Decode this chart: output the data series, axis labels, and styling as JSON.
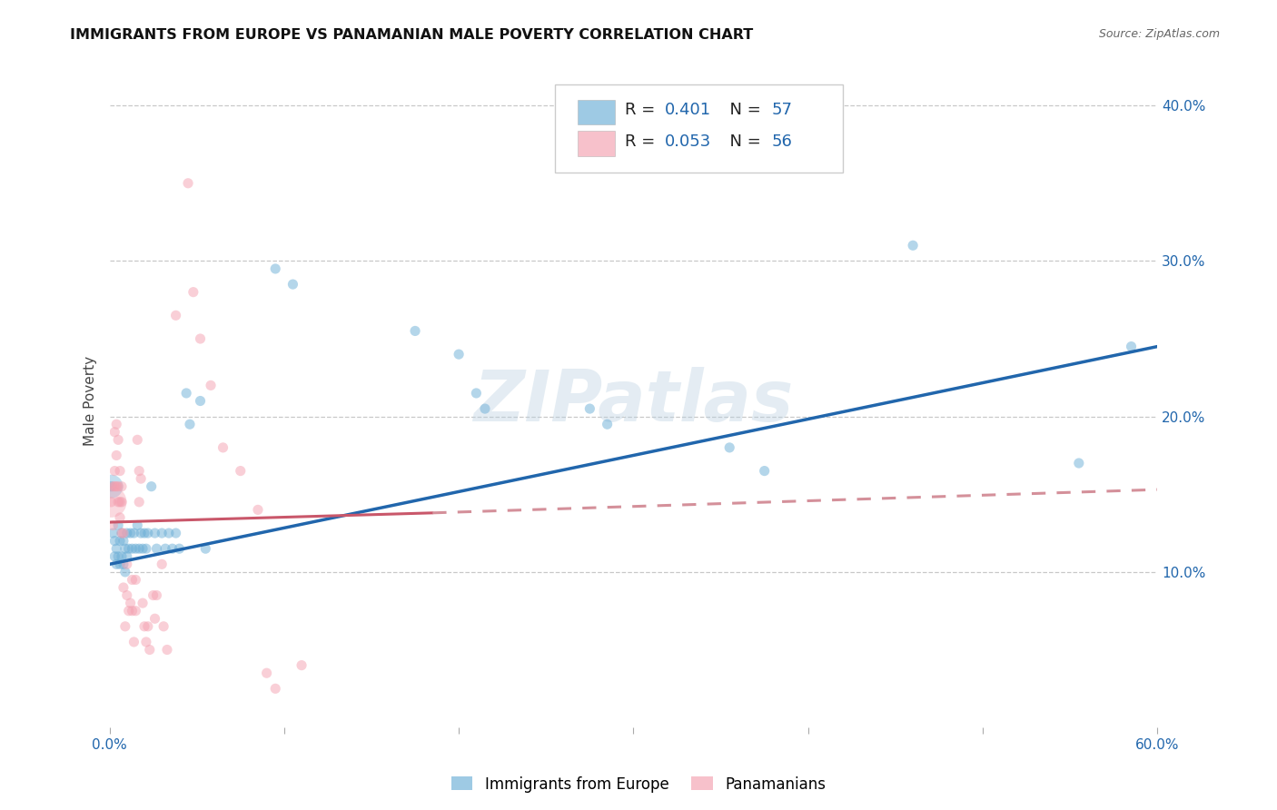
{
  "title": "IMMIGRANTS FROM EUROPE VS PANAMANIAN MALE POVERTY CORRELATION CHART",
  "source": "Source: ZipAtlas.com",
  "ylabel": "Male Poverty",
  "xlim": [
    0.0,
    0.6
  ],
  "ylim": [
    0.0,
    0.42
  ],
  "xticks": [
    0.0,
    0.1,
    0.2,
    0.3,
    0.4,
    0.5,
    0.6
  ],
  "xticklabels": [
    "0.0%",
    "",
    "",
    "",
    "",
    "",
    "60.0%"
  ],
  "yticks_right": [
    0.1,
    0.2,
    0.3,
    0.4
  ],
  "ytick_right_labels": [
    "10.0%",
    "20.0%",
    "30.0%",
    "40.0%"
  ],
  "legend_bottom": [
    "Immigrants from Europe",
    "Panamanians"
  ],
  "blue_color": "#6baed6",
  "pink_color": "#f4a0b0",
  "blue_line_color": "#2166ac",
  "pink_line_color": "#c9576a",
  "pink_line_dashed_color": "#d4909a",
  "watermark": "ZIPatlas",
  "blue_scatter": [
    [
      0.001,
      0.155
    ],
    [
      0.002,
      0.125
    ],
    [
      0.003,
      0.12
    ],
    [
      0.003,
      0.11
    ],
    [
      0.004,
      0.115
    ],
    [
      0.004,
      0.105
    ],
    [
      0.005,
      0.13
    ],
    [
      0.005,
      0.11
    ],
    [
      0.006,
      0.12
    ],
    [
      0.006,
      0.105
    ],
    [
      0.007,
      0.125
    ],
    [
      0.007,
      0.11
    ],
    [
      0.008,
      0.12
    ],
    [
      0.008,
      0.105
    ],
    [
      0.009,
      0.115
    ],
    [
      0.009,
      0.1
    ],
    [
      0.01,
      0.125
    ],
    [
      0.01,
      0.11
    ],
    [
      0.011,
      0.115
    ],
    [
      0.012,
      0.125
    ],
    [
      0.013,
      0.115
    ],
    [
      0.014,
      0.125
    ],
    [
      0.015,
      0.115
    ],
    [
      0.016,
      0.13
    ],
    [
      0.017,
      0.115
    ],
    [
      0.018,
      0.125
    ],
    [
      0.019,
      0.115
    ],
    [
      0.02,
      0.125
    ],
    [
      0.021,
      0.115
    ],
    [
      0.022,
      0.125
    ],
    [
      0.024,
      0.155
    ],
    [
      0.026,
      0.125
    ],
    [
      0.027,
      0.115
    ],
    [
      0.03,
      0.125
    ],
    [
      0.032,
      0.115
    ],
    [
      0.034,
      0.125
    ],
    [
      0.036,
      0.115
    ],
    [
      0.038,
      0.125
    ],
    [
      0.04,
      0.115
    ],
    [
      0.044,
      0.215
    ],
    [
      0.046,
      0.195
    ],
    [
      0.052,
      0.21
    ],
    [
      0.055,
      0.115
    ],
    [
      0.095,
      0.295
    ],
    [
      0.105,
      0.285
    ],
    [
      0.175,
      0.255
    ],
    [
      0.2,
      0.24
    ],
    [
      0.21,
      0.215
    ],
    [
      0.215,
      0.205
    ],
    [
      0.275,
      0.205
    ],
    [
      0.285,
      0.195
    ],
    [
      0.355,
      0.18
    ],
    [
      0.375,
      0.165
    ],
    [
      0.46,
      0.31
    ],
    [
      0.555,
      0.17
    ],
    [
      0.585,
      0.245
    ]
  ],
  "blue_scatter_large": [
    [
      0.001,
      0.155,
      350
    ]
  ],
  "pink_scatter": [
    [
      0.001,
      0.145
    ],
    [
      0.002,
      0.155
    ],
    [
      0.002,
      0.13
    ],
    [
      0.003,
      0.19
    ],
    [
      0.003,
      0.165
    ],
    [
      0.003,
      0.155
    ],
    [
      0.004,
      0.175
    ],
    [
      0.004,
      0.155
    ],
    [
      0.004,
      0.195
    ],
    [
      0.005,
      0.185
    ],
    [
      0.005,
      0.155
    ],
    [
      0.005,
      0.145
    ],
    [
      0.006,
      0.135
    ],
    [
      0.006,
      0.165
    ],
    [
      0.006,
      0.145
    ],
    [
      0.007,
      0.125
    ],
    [
      0.007,
      0.155
    ],
    [
      0.007,
      0.145
    ],
    [
      0.008,
      0.125
    ],
    [
      0.008,
      0.09
    ],
    [
      0.009,
      0.065
    ],
    [
      0.01,
      0.105
    ],
    [
      0.01,
      0.085
    ],
    [
      0.011,
      0.075
    ],
    [
      0.012,
      0.08
    ],
    [
      0.013,
      0.095
    ],
    [
      0.013,
      0.075
    ],
    [
      0.014,
      0.055
    ],
    [
      0.015,
      0.095
    ],
    [
      0.015,
      0.075
    ],
    [
      0.016,
      0.185
    ],
    [
      0.017,
      0.165
    ],
    [
      0.017,
      0.145
    ],
    [
      0.018,
      0.16
    ],
    [
      0.019,
      0.08
    ],
    [
      0.02,
      0.065
    ],
    [
      0.021,
      0.055
    ],
    [
      0.022,
      0.065
    ],
    [
      0.023,
      0.05
    ],
    [
      0.025,
      0.085
    ],
    [
      0.026,
      0.07
    ],
    [
      0.027,
      0.085
    ],
    [
      0.03,
      0.105
    ],
    [
      0.031,
      0.065
    ],
    [
      0.033,
      0.05
    ],
    [
      0.038,
      0.265
    ],
    [
      0.045,
      0.35
    ],
    [
      0.048,
      0.28
    ],
    [
      0.052,
      0.25
    ],
    [
      0.058,
      0.22
    ],
    [
      0.065,
      0.18
    ],
    [
      0.075,
      0.165
    ],
    [
      0.085,
      0.14
    ],
    [
      0.09,
      0.035
    ],
    [
      0.095,
      0.025
    ],
    [
      0.11,
      0.04
    ]
  ],
  "pink_scatter_large": [
    [
      0.001,
      0.145,
      600
    ]
  ],
  "blue_trendline": [
    [
      0.0,
      0.105
    ],
    [
      0.6,
      0.245
    ]
  ],
  "pink_trendline_solid": [
    [
      0.0,
      0.132
    ],
    [
      0.185,
      0.138
    ]
  ],
  "pink_trendline_dashed": [
    [
      0.185,
      0.138
    ],
    [
      0.6,
      0.153
    ]
  ]
}
